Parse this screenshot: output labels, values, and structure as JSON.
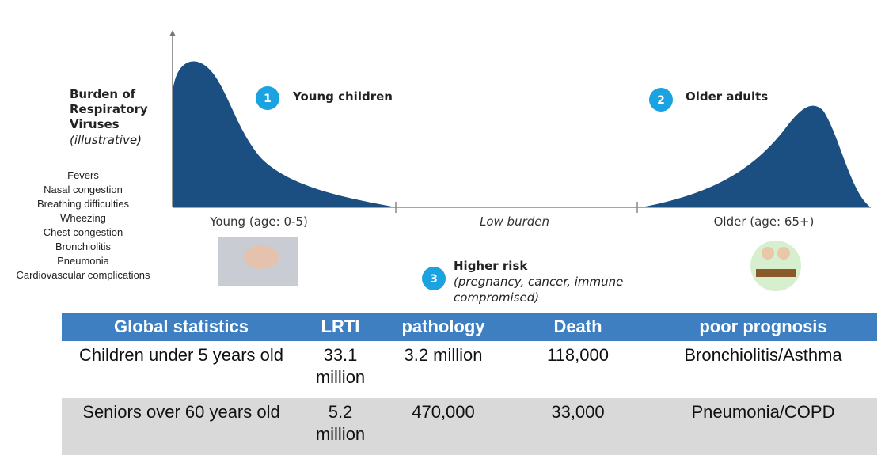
{
  "y_label": {
    "title": "Burden of Respiratory Viruses",
    "note": "(illustrative)"
  },
  "symptoms": [
    "Fevers",
    "Nasal congestion",
    "Breathing difficulties",
    "Wheezing",
    "Chest congestion",
    "Bronchiolitis",
    "Pneumonia",
    "Cardiovascular complications"
  ],
  "groups": [
    {
      "number": "1",
      "label": "Young children"
    },
    {
      "number": "2",
      "label": "Older adults"
    },
    {
      "number": "3",
      "label": "Higher risk",
      "note": "(pregnancy, cancer, immune compromised)"
    }
  ],
  "axis_labels": [
    "Young (age: 0-5)",
    "Low burden",
    "Older (age: 65+)"
  ],
  "table": {
    "header": [
      "Global statistics",
      "LRTI",
      "pathology",
      "Death",
      "poor prognosis"
    ],
    "rows": [
      [
        "Children under 5 years old",
        "33.1 million",
        "3.2 million",
        "118,000",
        "Bronchiolitis/Asthma"
      ],
      [
        "Seniors over 60 years old",
        "5.2 million",
        "470,000",
        "33,000",
        "Pneumonia/COPD"
      ]
    ]
  }
}
